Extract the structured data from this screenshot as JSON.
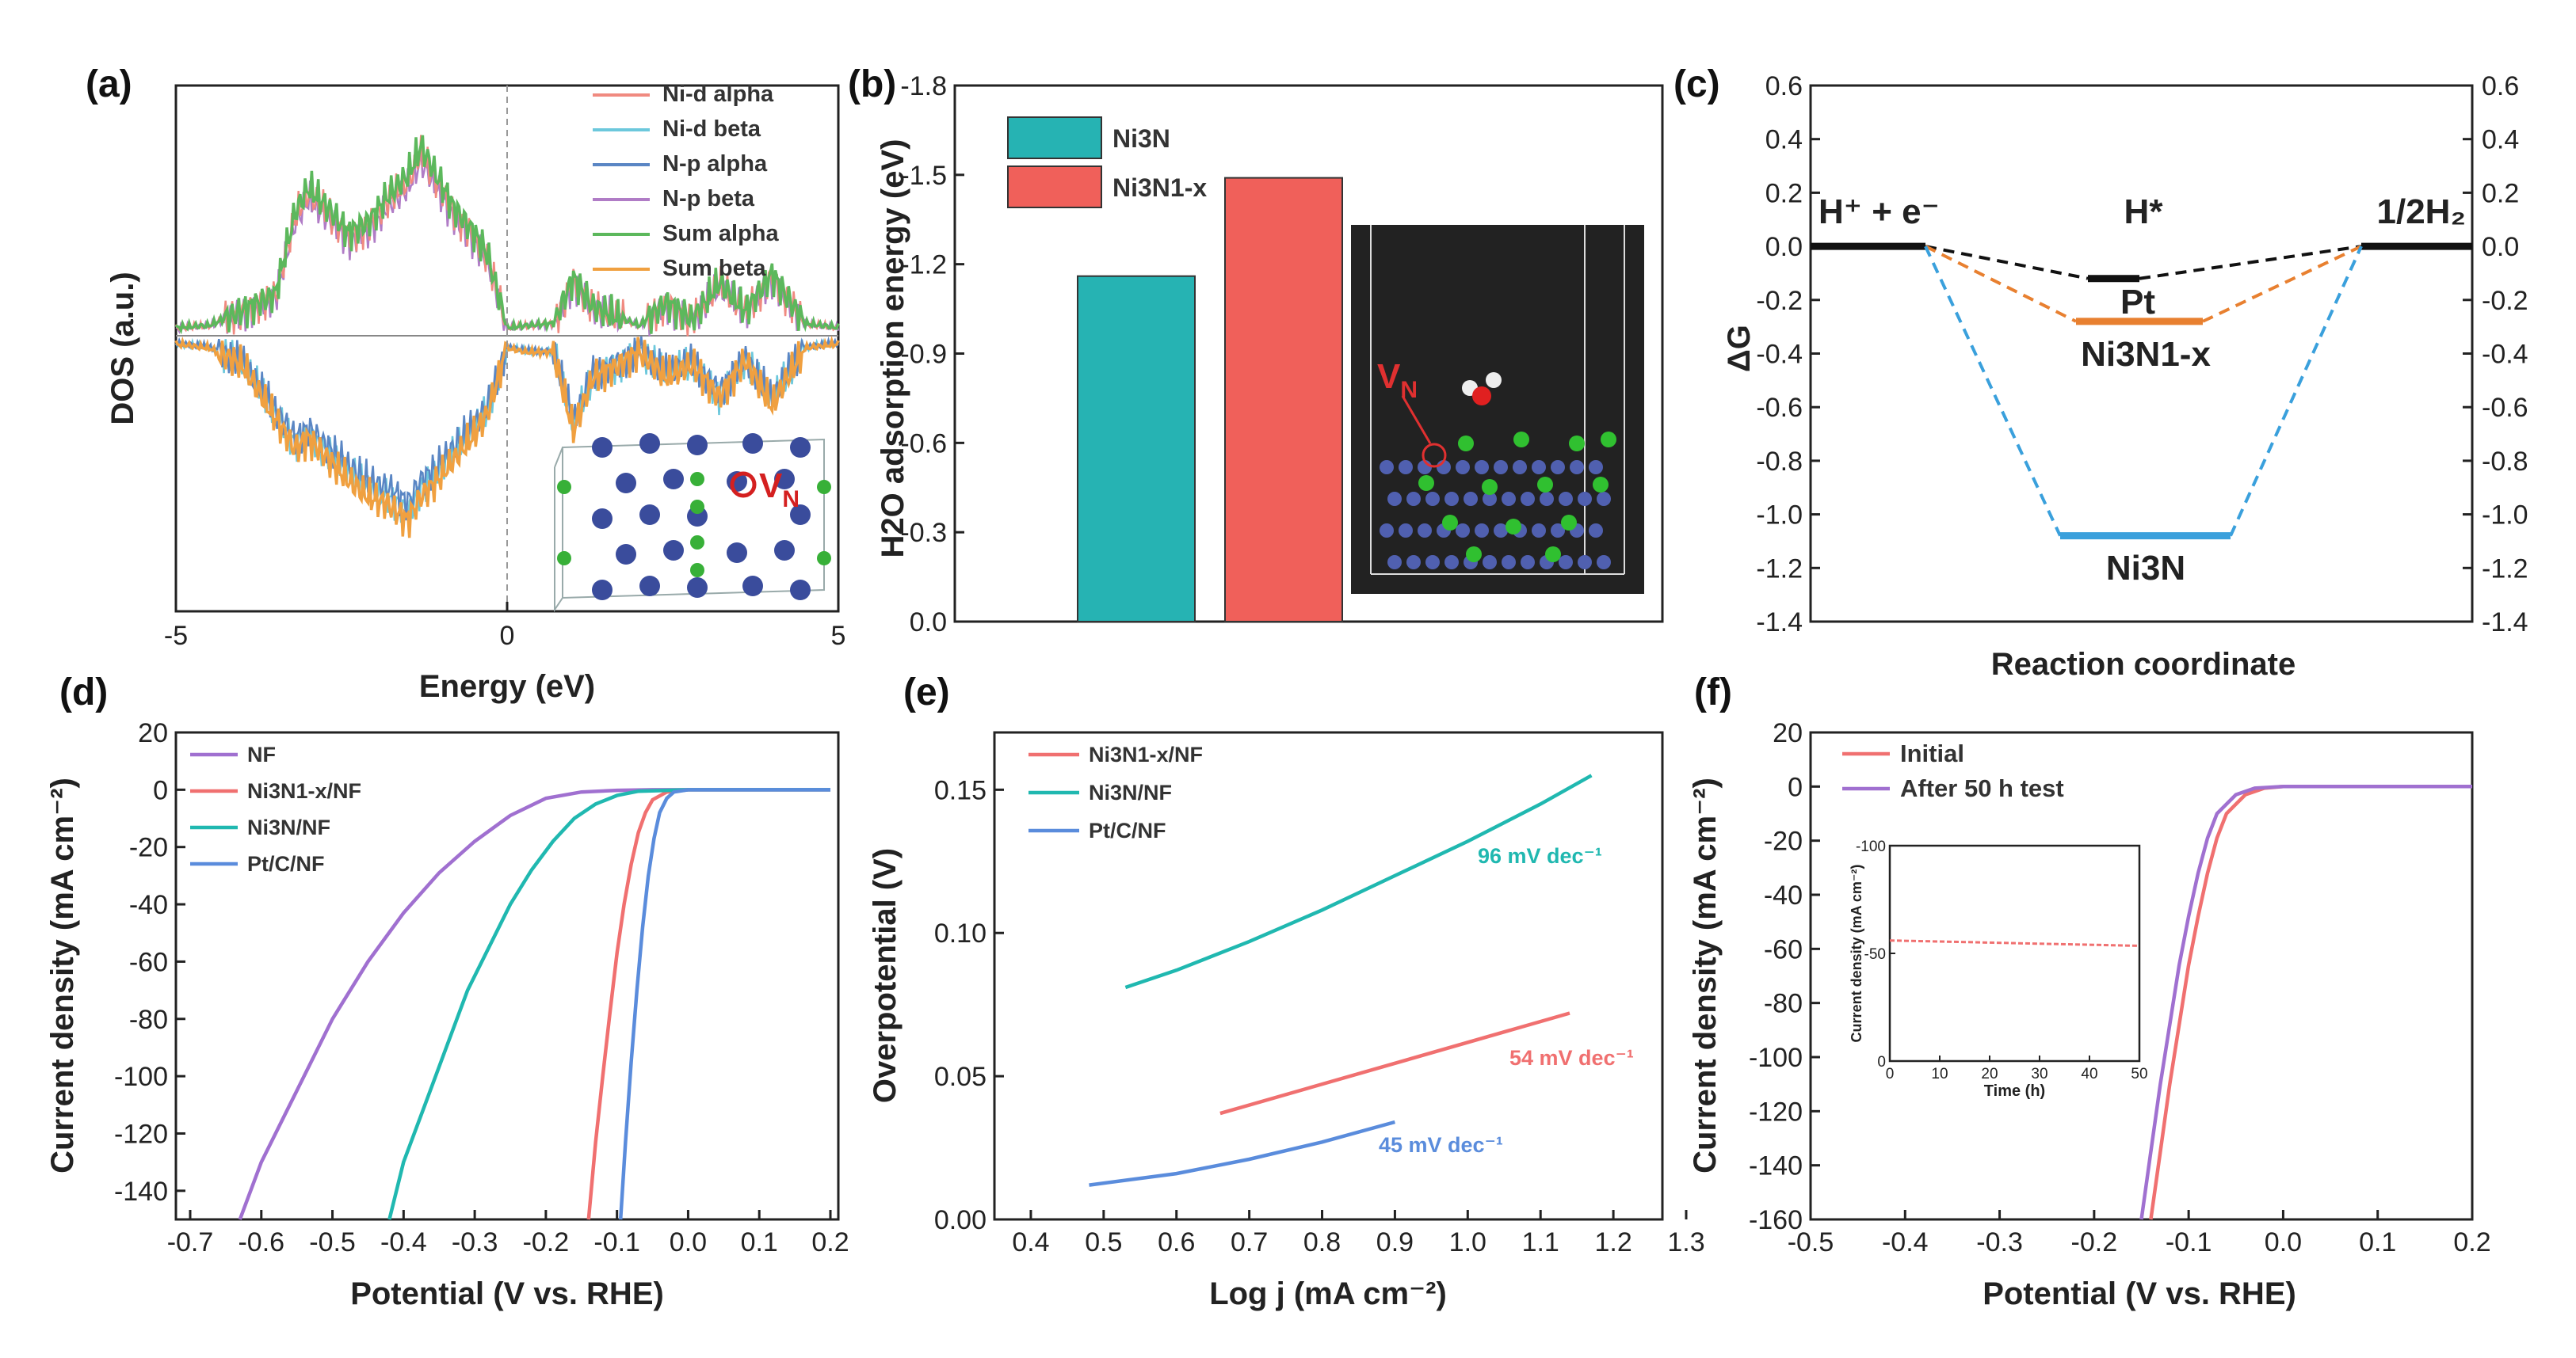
{
  "colors": {
    "ni_d_alpha": "#f08a80",
    "ni_d_beta": "#6cc8dc",
    "n_p_alpha": "#5a86c4",
    "n_p_beta": "#b07cc6",
    "sum_alpha": "#5cb85c",
    "sum_beta": "#f0a040",
    "ni3n_bar": "#26b3b3",
    "ni3n1x_bar": "#f0605a",
    "nf": "#a070d0",
    "ni3n1x": "#f07070",
    "ni3n": "#20b8b0",
    "ptc": "#5a8cdc",
    "inset_bg": "#222222",
    "ni_atom": "#3a4c9c",
    "n_atom": "#38b038",
    "vn": "#d42020"
  },
  "chart_data": [
    {
      "panel": "(a)",
      "type": "line",
      "xlabel": "Energy (eV)",
      "ylabel": "DOS (a.u.)",
      "xlim": [
        -5,
        5
      ],
      "xticks": [
        "-5",
        "0",
        "5"
      ],
      "legend": [
        "Ni-d alpha",
        "Ni-d beta",
        "N-p alpha",
        "N-p beta",
        "Sum alpha",
        "Sum beta"
      ],
      "inset_label": "V",
      "inset_sub": "N",
      "envelope": {
        "x": [
          -5,
          -4.5,
          -4,
          -3.5,
          -3.2,
          -3.0,
          -2.7,
          -2.4,
          -2.1,
          -1.8,
          -1.5,
          -1.3,
          -1.1,
          -0.8,
          -0.5,
          -0.3,
          0,
          0.3,
          0.7,
          1.0,
          1.3,
          1.6,
          2.0,
          2.4,
          2.8,
          3.2,
          3.6,
          4.0,
          4.2,
          4.5,
          5
        ],
        "alpha": [
          0.04,
          0.05,
          0.12,
          0.2,
          0.6,
          0.72,
          0.62,
          0.5,
          0.55,
          0.68,
          0.78,
          0.92,
          0.8,
          0.62,
          0.5,
          0.4,
          0.04,
          0.05,
          0.06,
          0.28,
          0.14,
          0.1,
          0.05,
          0.16,
          0.08,
          0.26,
          0.12,
          0.3,
          0.2,
          0.06,
          0.04
        ],
        "beta": [
          -0.04,
          -0.06,
          -0.14,
          -0.4,
          -0.55,
          -0.5,
          -0.6,
          -0.7,
          -0.78,
          -0.82,
          -0.9,
          -0.78,
          -0.72,
          -0.6,
          -0.48,
          -0.38,
          -0.06,
          -0.08,
          -0.08,
          -0.46,
          -0.2,
          -0.16,
          -0.08,
          -0.2,
          -0.14,
          -0.3,
          -0.12,
          -0.34,
          -0.22,
          -0.06,
          -0.04
        ]
      }
    },
    {
      "panel": "(b)",
      "type": "bar",
      "ylabel": "H2O adsorption energy (eV)",
      "ylim": [
        0.0,
        -1.8
      ],
      "yticks": [
        "-1.8",
        "-1.5",
        "-1.2",
        "-0.9",
        "-0.6",
        "-0.3",
        "0.0"
      ],
      "categories": [
        "Ni3N",
        "Ni3N1-x"
      ],
      "values": [
        -1.16,
        -1.49
      ],
      "inset_label": "V",
      "inset_sub": "N"
    },
    {
      "panel": "(c)",
      "type": "line",
      "xlabel": "Reaction coordinate",
      "ylabel": "ΔG",
      "ylim": [
        -1.4,
        0.6
      ],
      "yticks": [
        "0.6",
        "0.4",
        "0.2",
        "0.0",
        "-0.2",
        "-0.4",
        "-0.6",
        "-0.8",
        "-1.0",
        "-1.2",
        "-1.4"
      ],
      "states": [
        "H⁺ + e⁻",
        "H*",
        "1/2H₂"
      ],
      "series": [
        {
          "name": "Pt",
          "values": [
            0.0,
            -0.12,
            0.0
          ]
        },
        {
          "name": "Ni3N1-x",
          "values": [
            0.0,
            -0.28,
            0.0
          ]
        },
        {
          "name": "Ni3N",
          "values": [
            0.0,
            -1.08,
            0.0
          ]
        }
      ]
    },
    {
      "panel": "(d)",
      "type": "line",
      "xlabel": "Potential (V vs. RHE)",
      "ylabel": "Current density (mA cm⁻²)",
      "xlim": [
        -0.7,
        0.2
      ],
      "ylim": [
        -150,
        20
      ],
      "xticks": [
        "-0.7",
        "-0.6",
        "-0.5",
        "-0.4",
        "-0.3",
        "-0.2",
        "-0.1",
        "0.0",
        "0.1",
        "0.2"
      ],
      "yticks": [
        "20",
        "0",
        "-20",
        "-40",
        "-60",
        "-80",
        "-100",
        "-120",
        "-140"
      ],
      "series": [
        {
          "name": "NF",
          "x": [
            -0.63,
            -0.6,
            -0.55,
            -0.5,
            -0.45,
            -0.4,
            -0.35,
            -0.3,
            -0.25,
            -0.2,
            -0.15,
            -0.1,
            -0.05,
            0.0,
            0.2
          ],
          "y": [
            -150,
            -130,
            -105,
            -80,
            -60,
            -43,
            -29,
            -18,
            -9,
            -3,
            -0.8,
            -0.2,
            0,
            0,
            0
          ]
        },
        {
          "name": "Ni3N1-x/NF",
          "x": [
            -0.14,
            -0.13,
            -0.12,
            -0.11,
            -0.1,
            -0.09,
            -0.08,
            -0.07,
            -0.06,
            -0.05,
            -0.03,
            0.0,
            0.2
          ],
          "y": [
            -150,
            -123,
            -100,
            -78,
            -57,
            -40,
            -26,
            -15,
            -8,
            -3.5,
            -0.8,
            0,
            0
          ]
        },
        {
          "name": "Ni3N/NF",
          "x": [
            -0.42,
            -0.4,
            -0.37,
            -0.34,
            -0.31,
            -0.28,
            -0.25,
            -0.22,
            -0.19,
            -0.16,
            -0.13,
            -0.1,
            -0.07,
            0.0,
            0.2
          ],
          "y": [
            -150,
            -130,
            -110,
            -90,
            -70,
            -55,
            -40,
            -28,
            -18,
            -10,
            -5,
            -2,
            -0.5,
            0,
            0
          ]
        },
        {
          "name": "Pt/C/NF",
          "x": [
            -0.095,
            -0.088,
            -0.08,
            -0.072,
            -0.064,
            -0.056,
            -0.048,
            -0.04,
            -0.03,
            -0.02,
            0.0,
            0.2
          ],
          "y": [
            -150,
            -123,
            -95,
            -70,
            -48,
            -30,
            -17,
            -8,
            -3,
            -0.8,
            0,
            0
          ]
        }
      ]
    },
    {
      "panel": "(e)",
      "type": "line",
      "xlabel": "Log j (mA cm⁻²)",
      "ylabel": "Overpotential (V)",
      "xlim": [
        0.35,
        1.3
      ],
      "ylim": [
        0.0,
        0.17
      ],
      "xticks": [
        "0.4",
        "0.5",
        "0.6",
        "0.7",
        "0.8",
        "0.9",
        "1.0",
        "1.1",
        "1.2",
        "1.3"
      ],
      "yticks": [
        "0.00",
        "0.05",
        "0.10",
        "0.15"
      ],
      "series": [
        {
          "name": "Ni3N1-x/NF",
          "x": [
            0.66,
            1.14
          ],
          "y": [
            0.037,
            0.072
          ],
          "slope_label": "54 mV dec⁻¹"
        },
        {
          "name": "Ni3N/NF",
          "x": [
            0.53,
            0.6,
            0.7,
            0.8,
            0.9,
            1.0,
            1.1,
            1.17
          ],
          "y": [
            0.081,
            0.087,
            0.097,
            0.108,
            0.12,
            0.132,
            0.145,
            0.155
          ],
          "slope_label": "96 mV dec⁻¹"
        },
        {
          "name": "Pt/C/NF",
          "x": [
            0.48,
            0.6,
            0.7,
            0.8,
            0.9
          ],
          "y": [
            0.012,
            0.016,
            0.021,
            0.027,
            0.034
          ],
          "slope_label": "45 mV dec⁻¹"
        }
      ]
    },
    {
      "panel": "(f)",
      "type": "line",
      "xlabel": "Potential (V vs. RHE)",
      "ylabel": "Current density (mA cm⁻²)",
      "xlim": [
        -0.5,
        0.2
      ],
      "ylim": [
        -160,
        20
      ],
      "xticks": [
        "-0.5",
        "-0.4",
        "-0.3",
        "-0.2",
        "-0.1",
        "0.0",
        "0.1",
        "0.2"
      ],
      "yticks": [
        "20",
        "0",
        "-20",
        "-40",
        "-60",
        "-80",
        "-100",
        "-120",
        "-140",
        "-160"
      ],
      "series": [
        {
          "name": "Initial",
          "x": [
            -0.14,
            -0.13,
            -0.12,
            -0.11,
            -0.1,
            -0.09,
            -0.08,
            -0.07,
            -0.06,
            -0.04,
            -0.02,
            0.0,
            0.2
          ],
          "y": [
            -160,
            -135,
            -110,
            -88,
            -66,
            -48,
            -32,
            -19,
            -10,
            -3,
            -0.6,
            0,
            0
          ]
        },
        {
          "name": "After 50 h test",
          "x": [
            -0.15,
            -0.14,
            -0.13,
            -0.12,
            -0.11,
            -0.1,
            -0.09,
            -0.08,
            -0.07,
            -0.05,
            -0.03,
            0.0,
            0.2
          ],
          "y": [
            -160,
            -135,
            -110,
            -88,
            -66,
            -48,
            -32,
            -19,
            -10,
            -3,
            -0.6,
            0,
            0
          ]
        }
      ],
      "inset": {
        "xlabel": "Time (h)",
        "ylabel": "Current density (mA cm⁻²)",
        "xlim": [
          0,
          50
        ],
        "ylim": [
          0,
          -100
        ],
        "xticks": [
          "0",
          "10",
          "20",
          "30",
          "40",
          "50"
        ],
        "yticks": [
          "-100",
          "-50",
          "0"
        ],
        "x": [
          0,
          10,
          20,
          30,
          40,
          50
        ],
        "y": [
          -56,
          -55.5,
          -55,
          -54.5,
          -54,
          -53.5
        ]
      }
    }
  ]
}
